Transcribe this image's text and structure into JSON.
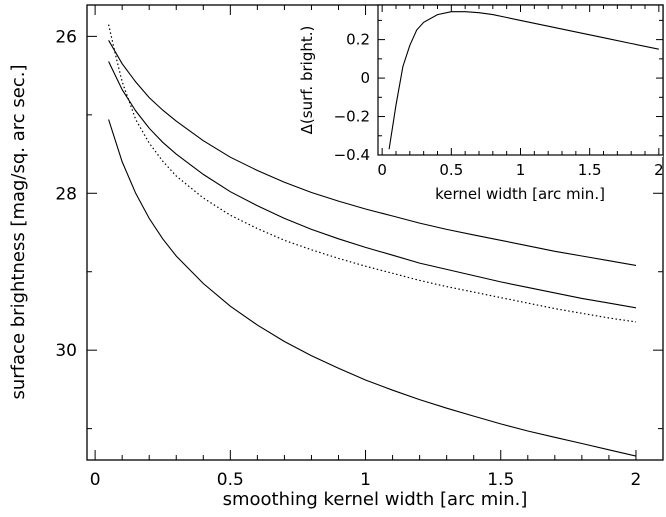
{
  "chart_data": [
    {
      "type": "line",
      "xlabel": "smoothing kernel width [arc min.]",
      "ylabel": "surface brightness [mag/sq. arc sec.]",
      "xlim": [
        -0.03,
        2.1
      ],
      "ylim": [
        31.4,
        25.6
      ],
      "y_axis_inverted": true,
      "x_ticks": [
        0,
        0.5,
        1,
        1.5,
        2
      ],
      "x_tick_labels": [
        "0",
        "0.5",
        "1",
        "1.5",
        "2"
      ],
      "y_ticks": [
        26,
        28,
        30
      ],
      "y_tick_labels": [
        "26",
        "28",
        "30"
      ],
      "grid": false,
      "series": [
        {
          "style": "solid",
          "x": [
            0.05,
            0.1,
            0.15,
            0.2,
            0.25,
            0.3,
            0.4,
            0.5,
            0.6,
            0.7,
            0.8,
            0.9,
            1.0,
            1.1,
            1.2,
            1.3,
            1.4,
            1.5,
            1.6,
            1.7,
            1.8,
            1.9,
            2.0
          ],
          "y": [
            26.05,
            26.35,
            26.58,
            26.78,
            26.94,
            27.08,
            27.33,
            27.54,
            27.71,
            27.86,
            27.99,
            28.1,
            28.2,
            28.29,
            28.38,
            28.46,
            28.53,
            28.6,
            28.67,
            28.74,
            28.8,
            28.86,
            28.92
          ]
        },
        {
          "style": "solid",
          "x": [
            0.05,
            0.1,
            0.15,
            0.2,
            0.25,
            0.3,
            0.4,
            0.5,
            0.6,
            0.7,
            0.8,
            0.9,
            1.0,
            1.1,
            1.2,
            1.3,
            1.4,
            1.5,
            1.6,
            1.7,
            1.8,
            1.9,
            2.0
          ],
          "y": [
            26.32,
            26.68,
            26.95,
            27.17,
            27.35,
            27.5,
            27.76,
            27.98,
            28.16,
            28.32,
            28.46,
            28.58,
            28.69,
            28.79,
            28.89,
            28.97,
            29.05,
            29.13,
            29.2,
            29.27,
            29.34,
            29.4,
            29.46
          ]
        },
        {
          "style": "dotted",
          "x": [
            0.05,
            0.08,
            0.1,
            0.15,
            0.2,
            0.25,
            0.3,
            0.4,
            0.5,
            0.6,
            0.7,
            0.8,
            0.9,
            1.0,
            1.1,
            1.2,
            1.3,
            1.4,
            1.5,
            1.6,
            1.7,
            1.8,
            1.9,
            2.0
          ],
          "y": [
            25.85,
            26.3,
            26.58,
            27.06,
            27.36,
            27.59,
            27.78,
            28.06,
            28.28,
            28.45,
            28.6,
            28.72,
            28.83,
            28.93,
            29.02,
            29.11,
            29.19,
            29.26,
            29.33,
            29.4,
            29.47,
            29.53,
            29.59,
            29.64
          ]
        },
        {
          "style": "solid",
          "x": [
            0.05,
            0.1,
            0.15,
            0.2,
            0.25,
            0.3,
            0.4,
            0.5,
            0.6,
            0.7,
            0.8,
            0.9,
            1.0,
            1.1,
            1.2,
            1.3,
            1.4,
            1.5,
            1.6,
            1.7,
            1.8,
            1.9,
            2.0
          ],
          "y": [
            27.06,
            27.6,
            28.0,
            28.32,
            28.58,
            28.8,
            29.15,
            29.44,
            29.68,
            29.89,
            30.07,
            30.23,
            30.38,
            30.51,
            30.63,
            30.74,
            30.84,
            30.94,
            31.03,
            31.11,
            31.19,
            31.27,
            31.35
          ]
        }
      ]
    },
    {
      "type": "line",
      "xlabel": "kernel width [arc min.]",
      "ylabel": "Δ(surf. bright.)",
      "xlim": [
        -0.03,
        2.03
      ],
      "ylim": [
        -0.4,
        0.38
      ],
      "x_ticks": [
        0,
        0.5,
        1,
        1.5,
        2
      ],
      "x_tick_labels": [
        "0",
        "0.5",
        "1",
        "1.5",
        "2"
      ],
      "y_ticks": [
        -0.4,
        -0.2,
        0,
        0.2
      ],
      "y_tick_labels": [
        "−0.4",
        "−0.2",
        "0",
        "0.2"
      ],
      "grid": false,
      "series": [
        {
          "style": "solid",
          "x": [
            0.05,
            0.1,
            0.15,
            0.2,
            0.25,
            0.3,
            0.4,
            0.5,
            0.6,
            0.7,
            0.8,
            0.9,
            1.0,
            1.2,
            1.4,
            1.6,
            1.8,
            2.0
          ],
          "y": [
            -0.37,
            -0.14,
            0.06,
            0.17,
            0.25,
            0.29,
            0.33,
            0.345,
            0.345,
            0.34,
            0.33,
            0.315,
            0.3,
            0.27,
            0.24,
            0.21,
            0.18,
            0.15
          ]
        }
      ]
    }
  ]
}
